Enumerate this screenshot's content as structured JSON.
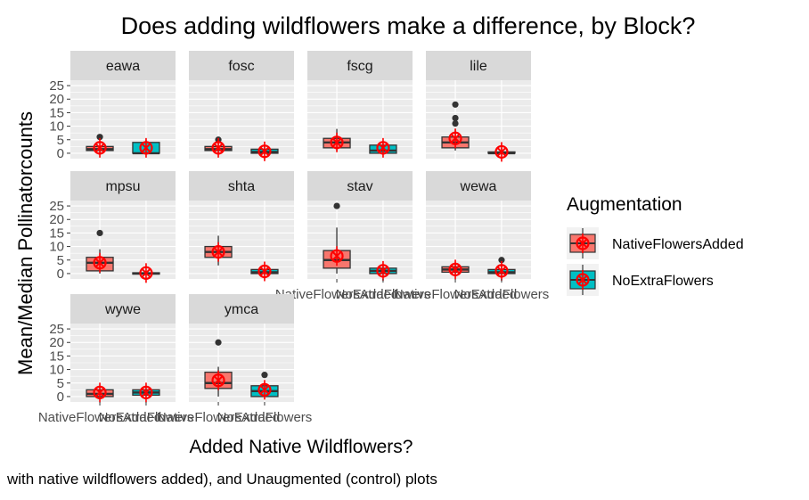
{
  "chart_data": {
    "type": "box",
    "title": "Does adding wildflowers make a difference, by Block?",
    "xlabel": "Added Native Wildflowers?",
    "ylabel": "Mean/Median Pollinatorcounts",
    "caption": "with native wildflowers added), and Unaugmented (control) plots",
    "ylim": [
      -2,
      27
    ],
    "yticks": [
      0,
      5,
      10,
      15,
      20,
      25
    ],
    "categories": [
      "NativeFlowersAdded",
      "NoExtraFlowers"
    ],
    "legend": {
      "title": "Augmentation",
      "position": "right",
      "items": [
        {
          "label": "NativeFlowersAdded",
          "color": "#F8766D"
        },
        {
          "label": "NoExtraFlowers",
          "color": "#00BFC4"
        }
      ]
    },
    "colors": {
      "NativeFlowersAdded": "#F8766D",
      "NoExtraFlowers": "#00BFC4",
      "mean_marker": "#FF0000",
      "panel_bg": "#EBEBEB",
      "strip_bg": "#D9D9D9"
    },
    "panels": [
      {
        "name": "eawa",
        "boxes": [
          {
            "group": "NativeFlowersAdded",
            "lw": 0,
            "q1": 1,
            "med": 1.5,
            "q3": 2.5,
            "uw": 3,
            "outliers": [
              6
            ],
            "mean": 2
          },
          {
            "group": "NoExtraFlowers",
            "lw": 0,
            "q1": 0,
            "med": 0,
            "q3": 4,
            "uw": 5,
            "outliers": [],
            "mean": 2
          }
        ]
      },
      {
        "name": "fosc",
        "boxes": [
          {
            "group": "NativeFlowersAdded",
            "lw": 0,
            "q1": 1,
            "med": 1.5,
            "q3": 2.5,
            "uw": 4,
            "outliers": [
              5
            ],
            "mean": 2
          },
          {
            "group": "NoExtraFlowers",
            "lw": 0,
            "q1": 0,
            "med": 0.5,
            "q3": 1.5,
            "uw": 2.5,
            "outliers": [],
            "mean": 0.7
          }
        ]
      },
      {
        "name": "fscg",
        "boxes": [
          {
            "group": "NativeFlowersAdded",
            "lw": 1,
            "q1": 2,
            "med": 4,
            "q3": 5.5,
            "uw": 9,
            "outliers": [],
            "mean": 4
          },
          {
            "group": "NoExtraFlowers",
            "lw": 0,
            "q1": 0,
            "med": 1,
            "q3": 3,
            "uw": 4,
            "outliers": [],
            "mean": 2
          }
        ]
      },
      {
        "name": "lile",
        "boxes": [
          {
            "group": "NativeFlowersAdded",
            "lw": 1,
            "q1": 2,
            "med": 4,
            "q3": 6,
            "uw": 9,
            "outliers": [
              11,
              13,
              18
            ],
            "mean": 5.5
          },
          {
            "group": "NoExtraFlowers",
            "lw": 0,
            "q1": 0,
            "med": 0,
            "q3": 0.5,
            "uw": 2,
            "outliers": [],
            "mean": 0.5
          }
        ]
      },
      {
        "name": "mpsu",
        "boxes": [
          {
            "group": "NativeFlowersAdded",
            "lw": 0,
            "q1": 1,
            "med": 4,
            "q3": 6,
            "uw": 9,
            "outliers": [
              15
            ],
            "mean": 4
          },
          {
            "group": "NoExtraFlowers",
            "lw": 0,
            "q1": 0,
            "med": 0,
            "q3": 0.3,
            "uw": 1,
            "outliers": [],
            "mean": 0.2
          }
        ]
      },
      {
        "name": "shta",
        "boxes": [
          {
            "group": "NativeFlowersAdded",
            "lw": 3,
            "q1": 6,
            "med": 8,
            "q3": 10,
            "uw": 14,
            "outliers": [],
            "mean": 8
          },
          {
            "group": "NoExtraFlowers",
            "lw": 0,
            "q1": 0,
            "med": 0.5,
            "q3": 1.5,
            "uw": 2,
            "outliers": [],
            "mean": 0.8
          }
        ]
      },
      {
        "name": "stav",
        "boxes": [
          {
            "group": "NativeFlowersAdded",
            "lw": 0,
            "q1": 2,
            "med": 5,
            "q3": 8.5,
            "uw": 17,
            "outliers": [
              25
            ],
            "mean": 6.5
          },
          {
            "group": "NoExtraFlowers",
            "lw": 0,
            "q1": 0,
            "med": 1,
            "q3": 2,
            "uw": 3,
            "outliers": [],
            "mean": 1
          }
        ]
      },
      {
        "name": "wewa",
        "boxes": [
          {
            "group": "NativeFlowersAdded",
            "lw": 0,
            "q1": 0.5,
            "med": 1.5,
            "q3": 2.5,
            "uw": 4,
            "outliers": [],
            "mean": 1.5
          },
          {
            "group": "NoExtraFlowers",
            "lw": 0,
            "q1": 0,
            "med": 0.5,
            "q3": 1.5,
            "uw": 3,
            "outliers": [
              5
            ],
            "mean": 1
          }
        ]
      },
      {
        "name": "wywe",
        "boxes": [
          {
            "group": "NativeFlowersAdded",
            "lw": 0,
            "q1": 0,
            "med": 1,
            "q3": 2.5,
            "uw": 3,
            "outliers": [],
            "mean": 1.5
          },
          {
            "group": "NoExtraFlowers",
            "lw": 0,
            "q1": 0.5,
            "med": 1.5,
            "q3": 2.5,
            "uw": 3,
            "outliers": [],
            "mean": 1.5
          }
        ]
      },
      {
        "name": "ymca",
        "boxes": [
          {
            "group": "NativeFlowersAdded",
            "lw": 0,
            "q1": 3,
            "med": 5,
            "q3": 9,
            "uw": 11,
            "outliers": [
              20
            ],
            "mean": 6
          },
          {
            "group": "NoExtraFlowers",
            "lw": 0,
            "q1": 0,
            "med": 2,
            "q3": 4,
            "uw": 5,
            "outliers": [
              8
            ],
            "mean": 2.5
          }
        ]
      }
    ]
  }
}
